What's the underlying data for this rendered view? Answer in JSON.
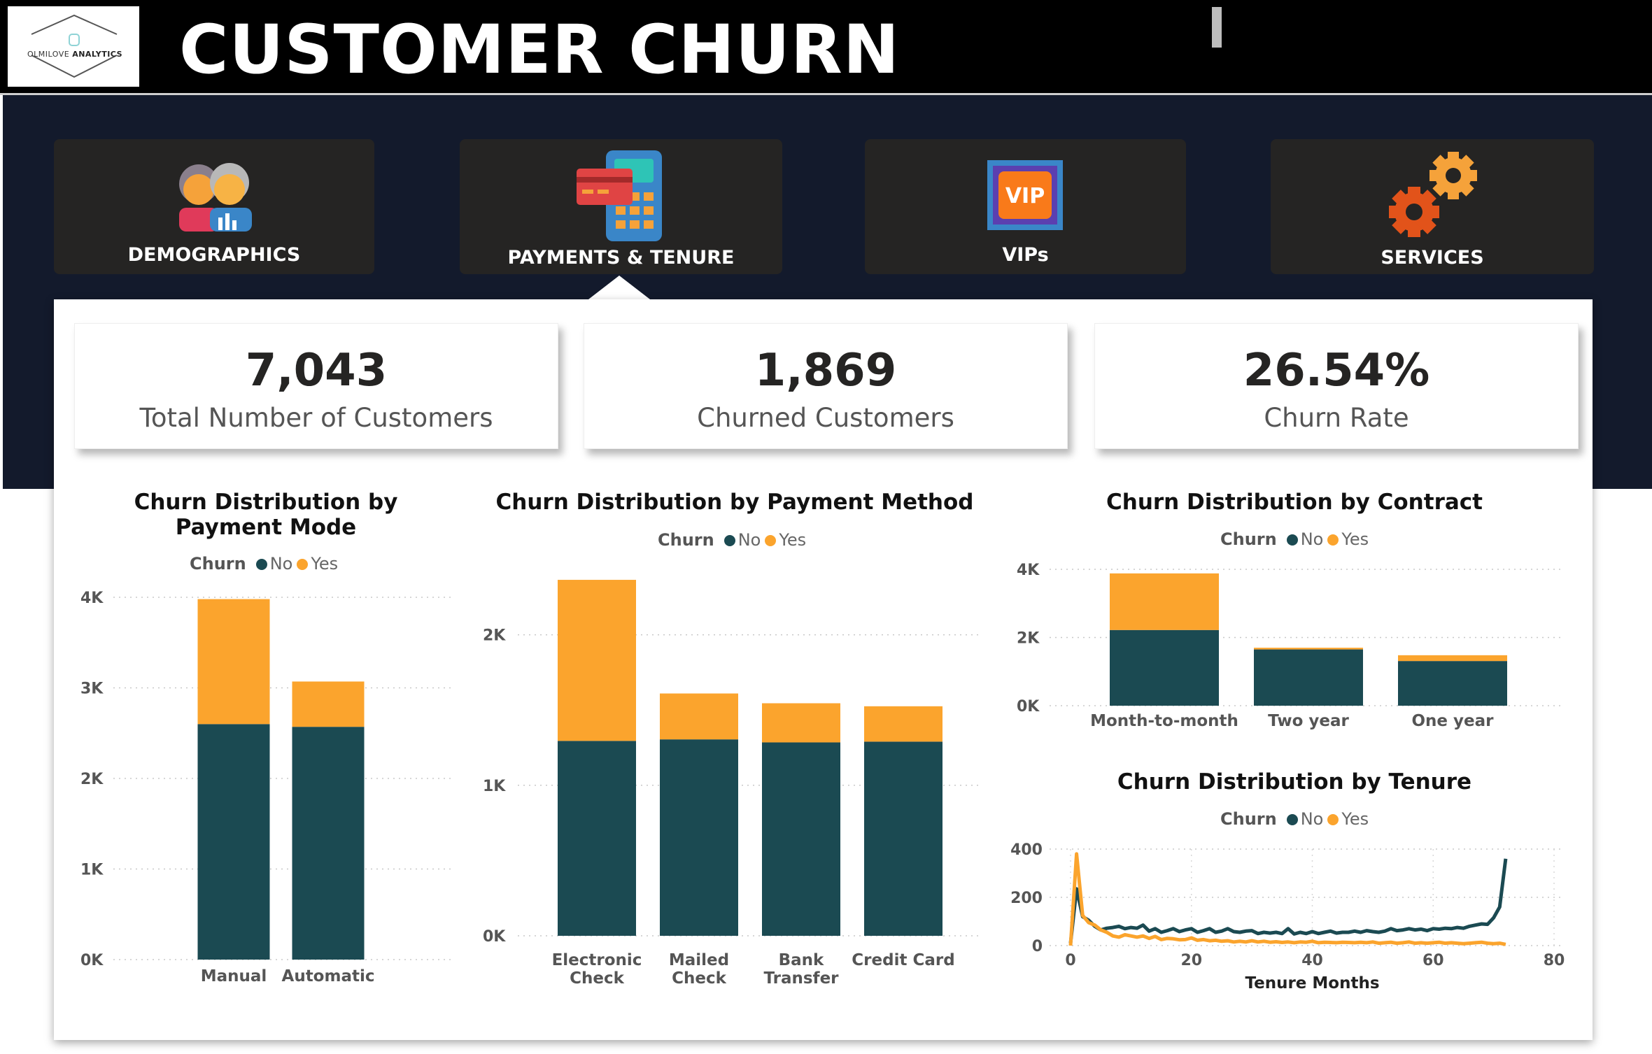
{
  "header": {
    "logo_text_a": "OLMILOVE",
    "logo_text_b": "ANALYTICS",
    "title": "CUSTOMER CHURN"
  },
  "nav": {
    "items": [
      {
        "label": "DEMOGRAPHICS",
        "icon": "people-icon"
      },
      {
        "label": "PAYMENTS & TENURE",
        "icon": "payment-terminal-icon"
      },
      {
        "label": "VIPs",
        "icon": "vip-icon"
      },
      {
        "label": "SERVICES",
        "icon": "gears-icon"
      }
    ],
    "selected": "PAYMENTS & TENURE"
  },
  "kpis": [
    {
      "value": "7,043",
      "label": "Total Number of Customers"
    },
    {
      "value": "1,869",
      "label": "Churned Customers"
    },
    {
      "value": "26.54%",
      "label": "Churn Rate"
    }
  ],
  "colors": {
    "no": "#1b4a52",
    "yes": "#fba42d",
    "navy": "#131a2c",
    "nav_button": "#252423"
  },
  "legend": {
    "title": "Churn",
    "no": "No",
    "yes": "Yes"
  },
  "chart_data": [
    {
      "type": "bar",
      "stacked": true,
      "title": "Churn Distribution by Payment Mode",
      "categories": [
        "Manual",
        "Automatic"
      ],
      "series": [
        {
          "name": "No",
          "values": [
            2600,
            2570
          ]
        },
        {
          "name": "Yes",
          "values": [
            1380,
            500
          ]
        }
      ],
      "ylim": [
        0,
        4000
      ],
      "yticks": [
        "0K",
        "1K",
        "2K",
        "3K",
        "4K"
      ],
      "legend": "top"
    },
    {
      "type": "bar",
      "stacked": true,
      "title": "Churn Distribution by Payment Method",
      "categories": [
        "Electronic Check",
        "Mailed Check",
        "Bank Transfer",
        "Credit Card"
      ],
      "series": [
        {
          "name": "No",
          "values": [
            1295,
            1305,
            1285,
            1290
          ]
        },
        {
          "name": "Yes",
          "values": [
            1070,
            305,
            260,
            235
          ]
        }
      ],
      "ylim": [
        0,
        2500
      ],
      "yticks": [
        "0K",
        "1K",
        "2K"
      ],
      "legend": "top"
    },
    {
      "type": "bar",
      "stacked": true,
      "title": "Churn Distribution by Contract",
      "categories": [
        "Month-to-month",
        "Two year",
        "One year"
      ],
      "series": [
        {
          "name": "No",
          "values": [
            2220,
            1650,
            1310
          ]
        },
        {
          "name": "Yes",
          "values": [
            1660,
            50,
            170
          ]
        }
      ],
      "ylim": [
        0,
        4000
      ],
      "yticks": [
        "0K",
        "2K",
        "4K"
      ],
      "legend": "top"
    },
    {
      "type": "line",
      "title": "Churn Distribution by Tenure",
      "xlabel": "Tenure Months",
      "xlim": [
        0,
        80
      ],
      "ylim": [
        0,
        400
      ],
      "xticks": [
        0,
        20,
        40,
        60,
        80
      ],
      "yticks": [
        0,
        200,
        400
      ],
      "series": [
        {
          "name": "No",
          "points": [
            [
              0,
              10
            ],
            [
              1,
              235
            ],
            [
              2,
              120
            ],
            [
              3,
              105
            ],
            [
              4,
              80
            ],
            [
              5,
              65
            ],
            [
              6,
              72
            ],
            [
              7,
              75
            ],
            [
              8,
              80
            ],
            [
              9,
              70
            ],
            [
              10,
              75
            ],
            [
              11,
              72
            ],
            [
              12,
              85
            ],
            [
              13,
              60
            ],
            [
              14,
              70
            ],
            [
              15,
              55
            ],
            [
              16,
              62
            ],
            [
              17,
              70
            ],
            [
              18,
              58
            ],
            [
              19,
              65
            ],
            [
              20,
              70
            ],
            [
              21,
              55
            ],
            [
              22,
              62
            ],
            [
              23,
              70
            ],
            [
              24,
              55
            ],
            [
              25,
              60
            ],
            [
              26,
              70
            ],
            [
              27,
              58
            ],
            [
              28,
              55
            ],
            [
              29,
              60
            ],
            [
              30,
              62
            ],
            [
              31,
              50
            ],
            [
              32,
              55
            ],
            [
              33,
              52
            ],
            [
              34,
              55
            ],
            [
              35,
              50
            ],
            [
              36,
              70
            ],
            [
              37,
              48
            ],
            [
              38,
              55
            ],
            [
              39,
              50
            ],
            [
              40,
              58
            ],
            [
              41,
              50
            ],
            [
              42,
              55
            ],
            [
              43,
              60
            ],
            [
              44,
              52
            ],
            [
              45,
              55
            ],
            [
              46,
              55
            ],
            [
              47,
              60
            ],
            [
              48,
              55
            ],
            [
              49,
              62
            ],
            [
              50,
              58
            ],
            [
              51,
              55
            ],
            [
              52,
              60
            ],
            [
              53,
              70
            ],
            [
              54,
              62
            ],
            [
              55,
              65
            ],
            [
              56,
              70
            ],
            [
              57,
              65
            ],
            [
              58,
              68
            ],
            [
              59,
              62
            ],
            [
              60,
              70
            ],
            [
              61,
              68
            ],
            [
              62,
              72
            ],
            [
              63,
              70
            ],
            [
              64,
              75
            ],
            [
              65,
              72
            ],
            [
              66,
              80
            ],
            [
              67,
              85
            ],
            [
              68,
              90
            ],
            [
              69,
              88
            ],
            [
              70,
              115
            ],
            [
              71,
              160
            ],
            [
              72,
              360
            ]
          ]
        },
        {
          "name": "Yes",
          "points": [
            [
              0,
              0
            ],
            [
              1,
              380
            ],
            [
              2,
              125
            ],
            [
              3,
              95
            ],
            [
              4,
              85
            ],
            [
              5,
              65
            ],
            [
              6,
              55
            ],
            [
              7,
              40
            ],
            [
              8,
              35
            ],
            [
              9,
              45
            ],
            [
              10,
              40
            ],
            [
              11,
              35
            ],
            [
              12,
              40
            ],
            [
              13,
              30
            ],
            [
              14,
              38
            ],
            [
              15,
              25
            ],
            [
              16,
              30
            ],
            [
              17,
              28
            ],
            [
              18,
              24
            ],
            [
              19,
              25
            ],
            [
              20,
              32
            ],
            [
              21,
              22
            ],
            [
              22,
              25
            ],
            [
              23,
              20
            ],
            [
              24,
              22
            ],
            [
              25,
              18
            ],
            [
              26,
              20
            ],
            [
              27,
              15
            ],
            [
              28,
              18
            ],
            [
              29,
              15
            ],
            [
              30,
              20
            ],
            [
              31,
              15
            ],
            [
              32,
              18
            ],
            [
              33,
              14
            ],
            [
              34,
              16
            ],
            [
              35,
              13
            ],
            [
              36,
              15
            ],
            [
              37,
              12
            ],
            [
              38,
              15
            ],
            [
              39,
              14
            ],
            [
              40,
              18
            ],
            [
              41,
              12
            ],
            [
              42,
              14
            ],
            [
              43,
              13
            ],
            [
              44,
              12
            ],
            [
              45,
              14
            ],
            [
              46,
              13
            ],
            [
              47,
              12
            ],
            [
              48,
              14
            ],
            [
              49,
              12
            ],
            [
              50,
              15
            ],
            [
              51,
              10
            ],
            [
              52,
              12
            ],
            [
              53,
              14
            ],
            [
              54,
              10
            ],
            [
              55,
              12
            ],
            [
              56,
              15
            ],
            [
              57,
              10
            ],
            [
              58,
              12
            ],
            [
              59,
              10
            ],
            [
              60,
              12
            ],
            [
              61,
              14
            ],
            [
              62,
              10
            ],
            [
              63,
              12
            ],
            [
              64,
              10
            ],
            [
              65,
              8
            ],
            [
              66,
              10
            ],
            [
              67,
              12
            ],
            [
              68,
              14
            ],
            [
              69,
              10
            ],
            [
              70,
              8
            ],
            [
              71,
              10
            ],
            [
              72,
              5
            ]
          ]
        }
      ],
      "legend": "top"
    }
  ]
}
